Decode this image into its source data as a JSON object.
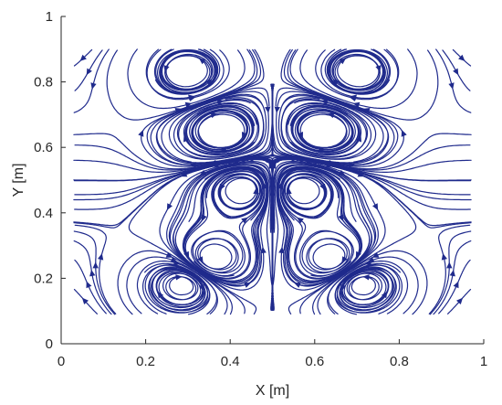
{
  "chart_data": {
    "type": "streamline",
    "title": "",
    "xlabel": "X [m]",
    "ylabel": "Y [m]",
    "xlim": [
      0,
      1
    ],
    "ylim": [
      0,
      1
    ],
    "xticks": [
      0,
      0.2,
      0.4,
      0.6,
      0.8,
      1
    ],
    "yticks": [
      0,
      0.2,
      0.4,
      0.6,
      0.8,
      1
    ],
    "xtick_labels": [
      "0",
      "0.2",
      "0.4",
      "0.6",
      "0.8",
      "1"
    ],
    "ytick_labels": [
      "0",
      "0.2",
      "0.4",
      "0.6",
      "0.8",
      "1"
    ],
    "grid": false,
    "line_color": "#1f2a8c",
    "field_extent": {
      "x": [
        0.03,
        0.97
      ],
      "y": [
        0.09,
        0.9
      ]
    },
    "symmetry": "mirror about x = 0.5",
    "vortex_centers": [
      {
        "x": 0.29,
        "y": 0.18,
        "dir": -1
      },
      {
        "x": 0.71,
        "y": 0.18,
        "dir": 1
      },
      {
        "x": 0.3,
        "y": 0.83,
        "dir": 1
      },
      {
        "x": 0.7,
        "y": 0.83,
        "dir": -1
      },
      {
        "x": 0.38,
        "y": 0.65,
        "dir": -1
      },
      {
        "x": 0.62,
        "y": 0.65,
        "dir": 1
      },
      {
        "x": 0.36,
        "y": 0.26,
        "dir": 1
      },
      {
        "x": 0.64,
        "y": 0.26,
        "dir": -1
      },
      {
        "x": 0.43,
        "y": 0.47,
        "dir": 1
      },
      {
        "x": 0.57,
        "y": 0.47,
        "dir": -1
      }
    ]
  }
}
